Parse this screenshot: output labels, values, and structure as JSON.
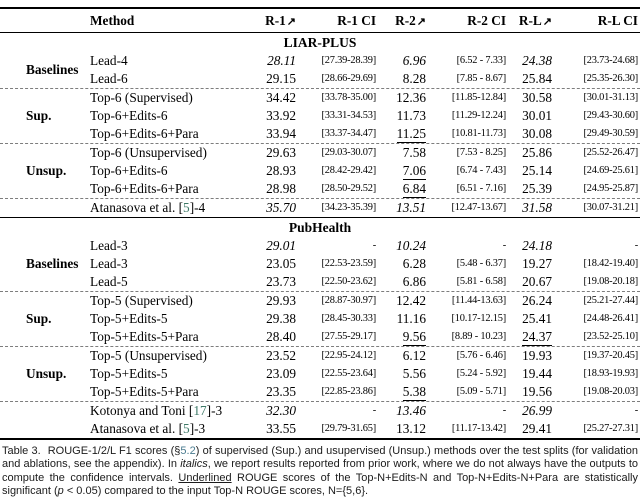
{
  "colors": {
    "cite_link": "#3e7a68",
    "section_link": "#4a7b8f"
  },
  "table": {
    "arrow": "↗",
    "headers": [
      {
        "text": "Method"
      },
      {
        "text": "R-1",
        "arrow": true
      },
      {
        "text": "R-1 CI"
      },
      {
        "text": "R-2",
        "arrow": true
      },
      {
        "text": "R-2 CI"
      },
      {
        "text": "R-L",
        "arrow": true
      },
      {
        "text": "R-L CI"
      }
    ],
    "sections": [
      {
        "title": "LIAR-PLUS",
        "groups": [
          {
            "label": "Baselines",
            "rows": [
              {
                "method": [
                  {
                    "t": "Lead-4"
                  }
                ],
                "italic": true,
                "cells": [
                  {
                    "v": "28.11"
                  },
                  {
                    "v": "[27.39-28.39]"
                  },
                  {
                    "v": "6.96"
                  },
                  {
                    "v": "[6.52 - 7.33]"
                  },
                  {
                    "v": "24.38"
                  },
                  {
                    "v": "[23.73-24.68]"
                  }
                ]
              },
              {
                "method": [
                  {
                    "t": "Lead-6"
                  }
                ],
                "cells": [
                  {
                    "v": "29.15"
                  },
                  {
                    "v": "[28.66-29.69]"
                  },
                  {
                    "v": "8.28"
                  },
                  {
                    "v": "[7.85 - 8.67]"
                  },
                  {
                    "v": "25.84"
                  },
                  {
                    "v": "[25.35-26.30]"
                  }
                ]
              }
            ]
          },
          {
            "label": "Sup.",
            "rows": [
              {
                "method": [
                  {
                    "t": "Top-6 (Supervised)"
                  }
                ],
                "cells": [
                  {
                    "v": "34.42"
                  },
                  {
                    "v": "[33.78-35.00]"
                  },
                  {
                    "v": "12.36"
                  },
                  {
                    "v": "[11.85-12.84]"
                  },
                  {
                    "v": "30.58"
                  },
                  {
                    "v": "[30.01-31.13]"
                  }
                ]
              },
              {
                "method": [
                  {
                    "t": "Top-6+Edits-6"
                  }
                ],
                "cells": [
                  {
                    "v": "33.92"
                  },
                  {
                    "v": "[33.31-34.53]"
                  },
                  {
                    "v": "11.73"
                  },
                  {
                    "v": "[11.29-12.24]"
                  },
                  {
                    "v": "30.01"
                  },
                  {
                    "v": "[29.43-30.60]"
                  }
                ]
              },
              {
                "method": [
                  {
                    "t": "Top-6+Edits-6+Para"
                  }
                ],
                "cells": [
                  {
                    "v": "33.94"
                  },
                  {
                    "v": "[33.37-34.47]"
                  },
                  {
                    "v": "11.25",
                    "u": true
                  },
                  {
                    "v": "[10.81-11.73]"
                  },
                  {
                    "v": "30.08"
                  },
                  {
                    "v": "[29.49-30.59]"
                  }
                ]
              }
            ]
          },
          {
            "label": "Unsup.",
            "rows": [
              {
                "method": [
                  {
                    "t": "Top-6 (Unsupervised)"
                  }
                ],
                "cells": [
                  {
                    "v": "29.63"
                  },
                  {
                    "v": "[29.03-30.07]"
                  },
                  {
                    "v": "7.58"
                  },
                  {
                    "v": "[7.53 - 8.25]"
                  },
                  {
                    "v": "25.86"
                  },
                  {
                    "v": "[25.52-26.47]"
                  }
                ]
              },
              {
                "method": [
                  {
                    "t": "Top-6+Edits-6"
                  }
                ],
                "cells": [
                  {
                    "v": "28.93"
                  },
                  {
                    "v": "[28.42-29.42]"
                  },
                  {
                    "v": "7.06",
                    "u": true
                  },
                  {
                    "v": "[6.74 - 7.43]"
                  },
                  {
                    "v": "25.14"
                  },
                  {
                    "v": "[24.69-25.61]"
                  }
                ]
              },
              {
                "method": [
                  {
                    "t": "Top-6+Edits-6+Para"
                  }
                ],
                "cells": [
                  {
                    "v": "28.98"
                  },
                  {
                    "v": "[28.50-29.52]"
                  },
                  {
                    "v": "6.84",
                    "u": true
                  },
                  {
                    "v": "[6.51 - 7.16]"
                  },
                  {
                    "v": "25.39"
                  },
                  {
                    "v": "[24.95-25.87]"
                  }
                ]
              }
            ]
          },
          {
            "label": "",
            "rows": [
              {
                "method": [
                  {
                    "t": "Atanasova et al. ["
                  },
                  {
                    "t": "5",
                    "style": "cite"
                  },
                  {
                    "t": "]-4"
                  }
                ],
                "italic": true,
                "cells": [
                  {
                    "v": "35.70"
                  },
                  {
                    "v": "[34.23-35.39]"
                  },
                  {
                    "v": "13.51"
                  },
                  {
                    "v": "[12.47-13.67]"
                  },
                  {
                    "v": "31.58"
                  },
                  {
                    "v": "[30.07-31.21]"
                  }
                ]
              }
            ]
          }
        ]
      },
      {
        "title": "PubHealth",
        "groups": [
          {
            "label": "Baselines",
            "rows": [
              {
                "method": [
                  {
                    "t": "Lead-3"
                  }
                ],
                "italic": true,
                "cells": [
                  {
                    "v": "29.01"
                  },
                  {
                    "v": "-"
                  },
                  {
                    "v": "10.24"
                  },
                  {
                    "v": "-"
                  },
                  {
                    "v": "24.18"
                  },
                  {
                    "v": "-"
                  }
                ]
              },
              {
                "method": [
                  {
                    "t": "Lead-3"
                  }
                ],
                "cells": [
                  {
                    "v": "23.05"
                  },
                  {
                    "v": "[22.53-23.59]"
                  },
                  {
                    "v": "6.28"
                  },
                  {
                    "v": "[5.48 - 6.37]"
                  },
                  {
                    "v": "19.27"
                  },
                  {
                    "v": "[18.42-19.40]"
                  }
                ]
              },
              {
                "method": [
                  {
                    "t": "Lead-5"
                  }
                ],
                "cells": [
                  {
                    "v": "23.73"
                  },
                  {
                    "v": "[22.50-23.62]"
                  },
                  {
                    "v": "6.86"
                  },
                  {
                    "v": "[5.81 - 6.58]"
                  },
                  {
                    "v": "20.67"
                  },
                  {
                    "v": "[19.08-20.18]"
                  }
                ]
              }
            ]
          },
          {
            "label": "Sup.",
            "rows": [
              {
                "method": [
                  {
                    "t": "Top-5 (Supervised)"
                  }
                ],
                "cells": [
                  {
                    "v": "29.93"
                  },
                  {
                    "v": "[28.87-30.97]"
                  },
                  {
                    "v": "12.42"
                  },
                  {
                    "v": "[11.44-13.63]"
                  },
                  {
                    "v": "26.24"
                  },
                  {
                    "v": "[25.21-27.44]"
                  }
                ]
              },
              {
                "method": [
                  {
                    "t": "Top-5+Edits-5"
                  }
                ],
                "cells": [
                  {
                    "v": "29.38"
                  },
                  {
                    "v": "[28.45-30.33]"
                  },
                  {
                    "v": "11.16"
                  },
                  {
                    "v": "[10.17-12.15]"
                  },
                  {
                    "v": "25.41"
                  },
                  {
                    "v": "[24.48-26.41]"
                  }
                ]
              },
              {
                "method": [
                  {
                    "t": "Top-5+Edits-5+Para"
                  }
                ],
                "cells": [
                  {
                    "v": "28.40"
                  },
                  {
                    "v": "[27.55-29.17]"
                  },
                  {
                    "v": "9.56",
                    "u": true
                  },
                  {
                    "v": "[8.89 - 10.23]"
                  },
                  {
                    "v": "24.37",
                    "u": true
                  },
                  {
                    "v": "[23.52-25.10]"
                  }
                ]
              }
            ]
          },
          {
            "label": "Unsup.",
            "rows": [
              {
                "method": [
                  {
                    "t": "Top-5 (Unsupervised)"
                  }
                ],
                "cells": [
                  {
                    "v": "23.52"
                  },
                  {
                    "v": "[22.95-24.12]"
                  },
                  {
                    "v": "6.12"
                  },
                  {
                    "v": "[5.76 - 6.46]"
                  },
                  {
                    "v": "19.93"
                  },
                  {
                    "v": "[19.37-20.45]"
                  }
                ]
              },
              {
                "method": [
                  {
                    "t": "Top-5+Edits-5"
                  }
                ],
                "cells": [
                  {
                    "v": "23.09"
                  },
                  {
                    "v": "[22.55-23.64]"
                  },
                  {
                    "v": "5.56"
                  },
                  {
                    "v": "[5.24 - 5.92]"
                  },
                  {
                    "v": "19.44"
                  },
                  {
                    "v": "[18.93-19.93]"
                  }
                ]
              },
              {
                "method": [
                  {
                    "t": "Top-5+Edits-5+Para"
                  }
                ],
                "cells": [
                  {
                    "v": "23.35"
                  },
                  {
                    "v": "[22.85-23.86]"
                  },
                  {
                    "v": "5.38",
                    "u": true
                  },
                  {
                    "v": "[5.09 - 5.71]"
                  },
                  {
                    "v": "19.56"
                  },
                  {
                    "v": "[19.08-20.03]"
                  }
                ]
              }
            ]
          },
          {
            "label": "",
            "rows": [
              {
                "method": [
                  {
                    "t": "Kotonya and Toni ["
                  },
                  {
                    "t": "17",
                    "style": "cite"
                  },
                  {
                    "t": "]-3"
                  }
                ],
                "italic": true,
                "cells": [
                  {
                    "v": "32.30"
                  },
                  {
                    "v": "-"
                  },
                  {
                    "v": "13.46"
                  },
                  {
                    "v": "-"
                  },
                  {
                    "v": "26.99"
                  },
                  {
                    "v": "-"
                  }
                ]
              },
              {
                "method": [
                  {
                    "t": "Atanasova et al. ["
                  },
                  {
                    "t": "5",
                    "style": "cite"
                  },
                  {
                    "t": "]-3"
                  }
                ],
                "cells": [
                  {
                    "v": "33.55"
                  },
                  {
                    "v": "[29.79-31.65]"
                  },
                  {
                    "v": "13.12"
                  },
                  {
                    "v": "[11.17-13.42]"
                  },
                  {
                    "v": "29.41"
                  },
                  {
                    "v": "[25.27-27.31]"
                  }
                ]
              }
            ]
          }
        ]
      }
    ]
  },
  "caption": {
    "segments": [
      {
        "t": "Table 3.",
        "style": "gap"
      },
      {
        "t": "ROUGE-1/2/L F1 scores (§"
      },
      {
        "t": "5.2",
        "style": "link"
      },
      {
        "t": ") of supervised (Sup.) and usupervised (Unsup.) methods over the test splits (for validation and ablations, see the appendix). In "
      },
      {
        "t": "italics",
        "style": "italic"
      },
      {
        "t": ", we report results reported from prior work, where we do not always have the outputs to compute the confidence intervals. "
      },
      {
        "t": "Underlined",
        "style": "underline"
      },
      {
        "t": " ROUGE scores of the Top-N+Edits-N and Top-N+Edits-N+Para are statistically significant ("
      },
      {
        "t": "p",
        "style": "italic"
      },
      {
        "t": " < 0.05) compared to the input Top-N ROUGE scores, N={5,6}."
      }
    ]
  }
}
